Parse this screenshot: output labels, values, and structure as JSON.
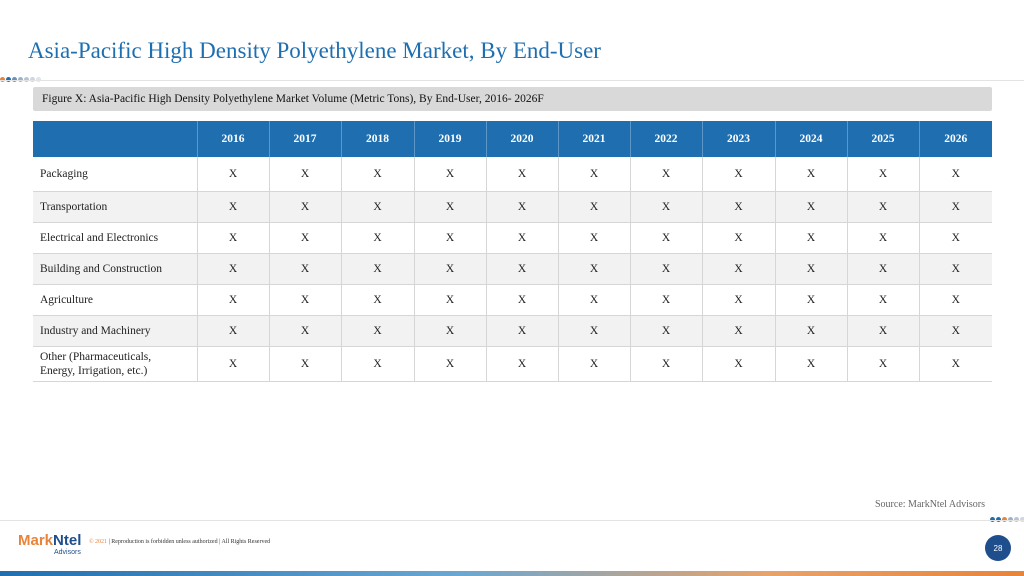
{
  "header": {
    "title": "Asia-Pacific High Density Polyethylene Market, By End-User"
  },
  "figure": {
    "caption": "Figure X: Asia-Pacific High Density Polyethylene Market Volume (Metric Tons), By End-User, 2016- 2026F"
  },
  "table": {
    "columns": [
      "",
      "2016",
      "2017",
      "2018",
      "2019",
      "2020",
      "2021",
      "2022",
      "2023",
      "2024",
      "2025",
      "2026"
    ],
    "rows": [
      {
        "label": "Packaging",
        "values": [
          "X",
          "X",
          "X",
          "X",
          "X",
          "X",
          "X",
          "X",
          "X",
          "X",
          "X"
        ]
      },
      {
        "label": "Transportation",
        "values": [
          "X",
          "X",
          "X",
          "X",
          "X",
          "X",
          "X",
          "X",
          "X",
          "X",
          "X"
        ]
      },
      {
        "label": "Electrical and Electronics",
        "values": [
          "X",
          "X",
          "X",
          "X",
          "X",
          "X",
          "X",
          "X",
          "X",
          "X",
          "X"
        ]
      },
      {
        "label": "Building and Construction",
        "values": [
          "X",
          "X",
          "X",
          "X",
          "X",
          "X",
          "X",
          "X",
          "X",
          "X",
          "X"
        ]
      },
      {
        "label": "Agriculture",
        "values": [
          "X",
          "X",
          "X",
          "X",
          "X",
          "X",
          "X",
          "X",
          "X",
          "X",
          "X"
        ]
      },
      {
        "label": "Industry and Machinery",
        "values": [
          "X",
          "X",
          "X",
          "X",
          "X",
          "X",
          "X",
          "X",
          "X",
          "X",
          "X"
        ]
      },
      {
        "label_line1": "Other (Pharmaceuticals,",
        "label_line2": "Energy, Irrigation, etc.)",
        "values": [
          "X",
          "X",
          "X",
          "X",
          "X",
          "X",
          "X",
          "X",
          "X",
          "X",
          "X"
        ]
      }
    ]
  },
  "source": "Source: MarkNtel Advisors",
  "footer": {
    "logo_mark": "Mark",
    "logo_ntel": "Ntel",
    "logo_sub": "Advisors",
    "copyright_year": "© 2021",
    "copyright_text": " | Reproduction is forbidden unless authorized | All Rights Reserved",
    "page_number": "28"
  },
  "colors": {
    "brand_blue": "#1f6fb0",
    "dark_blue": "#1f4e8c",
    "accent_orange": "#e8833a",
    "dots_left": [
      "#e8833a",
      "#1f6fb0",
      "#6f8fb5",
      "#9fb1c8",
      "#b9c4d1",
      "#cfd6df",
      "#e0e4e9"
    ],
    "dots_right": [
      "#1f6fb0",
      "#1f6fb0",
      "#e8833a",
      "#9fb1c8",
      "#b9c4d1",
      "#cfd6df",
      "#e0e4e9"
    ]
  }
}
